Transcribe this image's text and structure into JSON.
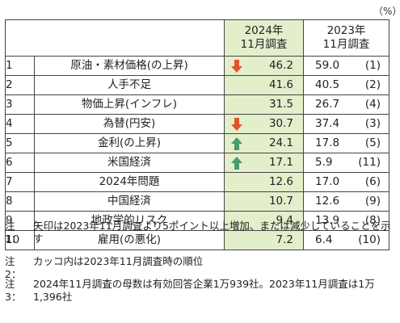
{
  "unit": "（%）",
  "header": {
    "col_2024_line1": "2024年",
    "col_2024_line2": "11月調査",
    "col_2023_line1": "2023年",
    "col_2023_line2": "11月調査"
  },
  "rows": [
    {
      "rank": "1",
      "item": "原油・素材価格(の上昇)",
      "v2024": "46.2",
      "v2023": "59.0",
      "prev_rank": "(1)",
      "arrow": "down"
    },
    {
      "rank": "2",
      "item": "人手不足",
      "v2024": "41.6",
      "v2023": "40.5",
      "prev_rank": "(2)",
      "arrow": ""
    },
    {
      "rank": "3",
      "item": "物価上昇(インフレ)",
      "v2024": "31.5",
      "v2023": "26.7",
      "prev_rank": "(4)",
      "arrow": ""
    },
    {
      "rank": "4",
      "item": "為替(円安)",
      "v2024": "30.7",
      "v2023": "37.4",
      "prev_rank": "(3)",
      "arrow": "down"
    },
    {
      "rank": "5",
      "item": "金利(の上昇)",
      "v2024": "24.1",
      "v2023": "17.8",
      "prev_rank": "(5)",
      "arrow": "up"
    },
    {
      "rank": "6",
      "item": "米国経済",
      "v2024": "17.1",
      "v2023": "5.9",
      "prev_rank": "(11)",
      "arrow": "up"
    },
    {
      "rank": "7",
      "item": "2024年問題",
      "v2024": "12.6",
      "v2023": "17.0",
      "prev_rank": "(6)",
      "arrow": ""
    },
    {
      "rank": "8",
      "item": "中国経済",
      "v2024": "10.7",
      "v2023": "12.6",
      "prev_rank": "(9)",
      "arrow": ""
    },
    {
      "rank": "9",
      "item": "地政学的リスク",
      "v2024": "9.4",
      "v2023": "13.9",
      "prev_rank": "(8)",
      "arrow": ""
    },
    {
      "rank": "10",
      "item": "雇用(の悪化)",
      "v2024": "7.2",
      "v2023": "6.4",
      "prev_rank": "(10)",
      "arrow": ""
    }
  ],
  "notes": [
    {
      "label": "注1：",
      "text": "矢印は2023年11月調査より5ポイント以上増加、または減少していることを示す"
    },
    {
      "label": "注2：",
      "text": "カッコ内は2023年11月調査時の順位"
    },
    {
      "label": "注3：",
      "text": "2024年11月調査の母数は有効回答企業1万939社。2023年11月調査は1万1,396社"
    }
  ],
  "colors": {
    "highlight": "#e3eecb",
    "arrow_down": "#e0542a",
    "arrow_up": "#4a9a6a"
  }
}
